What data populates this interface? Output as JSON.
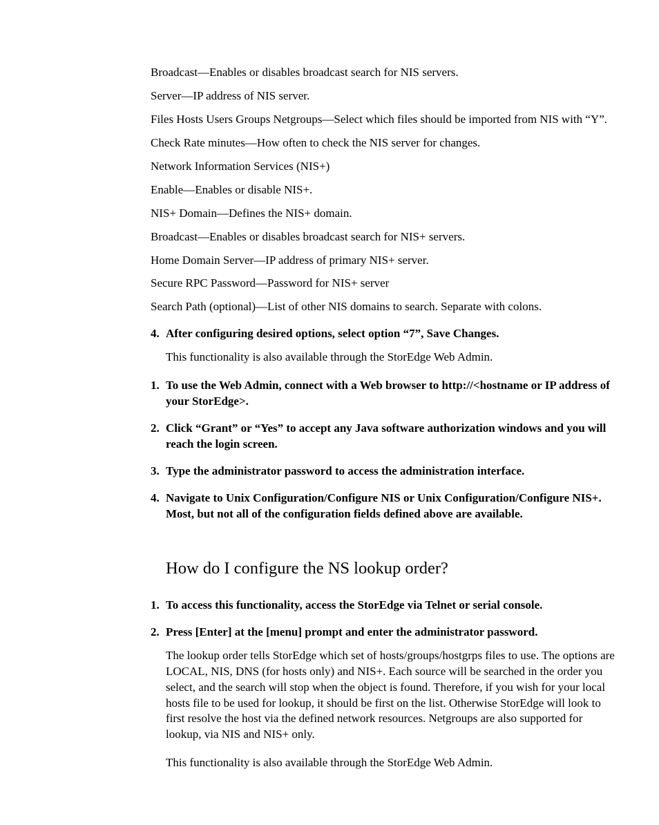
{
  "typography": {
    "body_font": "Palatino Linotype, Book Antiqua, Palatino, Georgia, serif",
    "body_size_pt": 12,
    "heading_size_pt": 18,
    "text_color": "#000000",
    "background": "#ffffff"
  },
  "nis_options": [
    "Broadcast—Enables or disables broadcast search for NIS servers.",
    "Server—IP address of NIS server.",
    "Files Hosts Users Groups Netgroups—Select which files should be imported from NIS with “Y”.",
    "Check Rate minutes—How often to check the NIS server for changes."
  ],
  "nis_plus_heading": "Network Information Services (NIS+)",
  "nis_plus_options": [
    "Enable—Enables or disable NIS+.",
    "NIS+ Domain—Defines the NIS+ domain.",
    "Broadcast—Enables or disables broadcast search for NIS+ servers.",
    "Home Domain Server—IP address of primary NIS+ server.",
    "Secure RPC Password—Password for NIS+ server",
    "Search Path (optional)—List of other NIS domains to search. Separate with colons."
  ],
  "step4": {
    "num": "4.",
    "title": "After configuring desired options, select option “7”, Save Changes.",
    "followup": "This functionality is also available through the StorEdge Web Admin."
  },
  "webadmin_steps": [
    {
      "num": "1.",
      "text": "To use the Web Admin, connect with a Web browser to http://<hostname or IP address of your StorEdge>."
    },
    {
      "num": "2.",
      "text": "Click “Grant” or “Yes” to accept any Java software authorization windows and you will reach the login screen."
    },
    {
      "num": "3.",
      "text": "Type the administrator password to access the administration interface."
    },
    {
      "num": "4.",
      "text": "Navigate to Unix Configuration/Configure NIS or Unix Configuration/Configure NIS+. Most, but not all of the configuration fields defined above are available."
    }
  ],
  "section_heading": "How do I configure the NS lookup order?",
  "ns_steps": [
    {
      "num": "1.",
      "text": "To access this functionality, access the StorEdge via Telnet or serial console."
    },
    {
      "num": "2.",
      "text": "Press [Enter] at the [menu] prompt and enter the administrator password."
    }
  ],
  "ns_body": "The lookup order tells StorEdge which set of hosts/groups/hostgrps files to use. The options are LOCAL, NIS, DNS (for hosts only) and NIS+. Each source will be searched in the order you select, and the search will stop when the object is found. Therefore, if you wish for your local hosts file to be used for lookup, it should be first on the list. Otherwise StorEdge will look to first resolve the host via the defined network resources. Netgroups are also supported for lookup, via NIS and NIS+ only.",
  "ns_footer": "This functionality is also available through the StorEdge Web Admin."
}
